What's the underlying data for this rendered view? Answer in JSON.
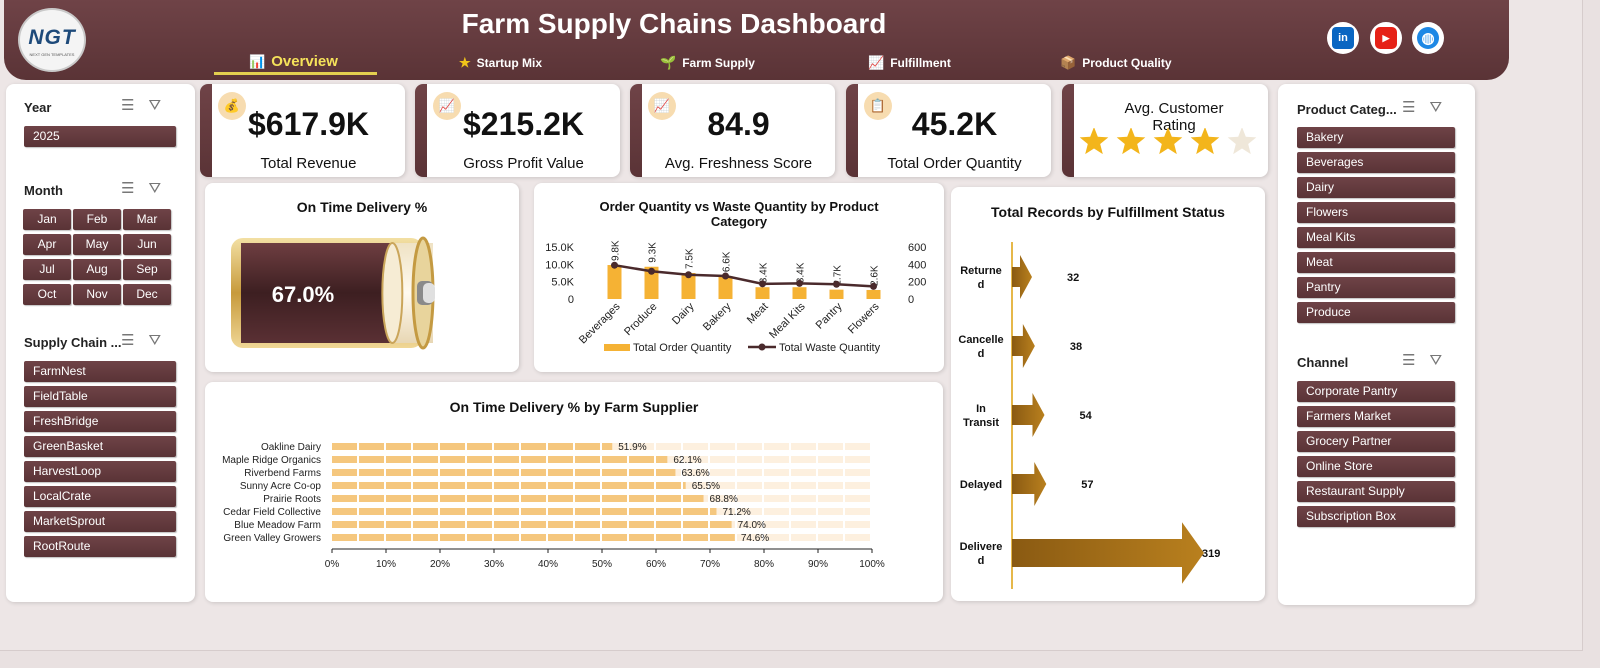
{
  "header": {
    "logo_text": "NGT",
    "logo_sub": "NEXT GEN TEMPLATES",
    "title": "Farm Supply Chains Dashboard",
    "tabs": [
      {
        "label": "Overview",
        "icon": "bar-chart-icon"
      },
      {
        "label": "Startup Mix",
        "icon": "star-icon"
      },
      {
        "label": "Farm Supply",
        "icon": "leaf-icon"
      },
      {
        "label": "Fulfillment",
        "icon": "line-chart-icon"
      },
      {
        "label": "Product Quality",
        "icon": "box-icon"
      }
    ],
    "social": [
      {
        "name": "linkedin-icon",
        "glyph": "in",
        "color": "#0a66c2"
      },
      {
        "name": "youtube-icon",
        "glyph": "▶",
        "color": "#e62117"
      },
      {
        "name": "globe-icon",
        "glyph": "◍",
        "color": "#1e88e5"
      }
    ]
  },
  "slicers": {
    "year": {
      "title": "Year",
      "items": [
        "2025"
      ]
    },
    "month": {
      "title": "Month",
      "items": [
        "Jan",
        "Feb",
        "Mar",
        "Apr",
        "May",
        "Jun",
        "Jul",
        "Aug",
        "Sep",
        "Oct",
        "Nov",
        "Dec"
      ]
    },
    "supply_chain": {
      "title": "Supply Chain ...",
      "items": [
        "FarmNest",
        "FieldTable",
        "FreshBridge",
        "GreenBasket",
        "HarvestLoop",
        "LocalCrate",
        "MarketSprout",
        "RootRoute"
      ]
    },
    "product_category": {
      "title": "Product Categ...",
      "items": [
        "Bakery",
        "Beverages",
        "Dairy",
        "Flowers",
        "Meal Kits",
        "Meat",
        "Pantry",
        "Produce"
      ]
    },
    "channel": {
      "title": "Channel",
      "items": [
        "Corporate Pantry",
        "Farmers Market",
        "Grocery Partner",
        "Online Store",
        "Restaurant Supply",
        "Subscription Box"
      ]
    }
  },
  "kpis": [
    {
      "value": "$617.9K",
      "label": "Total Revenue",
      "icon": "money-bag-icon"
    },
    {
      "value": "$215.2K",
      "label": "Gross Profit Value",
      "icon": "trend-icon"
    },
    {
      "value": "84.9",
      "label": "Avg. Freshness Score",
      "icon": "trend-icon"
    },
    {
      "value": "45.2K",
      "label": "Total Order Quantity",
      "icon": "clipboard-icon"
    }
  ],
  "rating": {
    "title": "Avg. Customer Rating",
    "value": "4.1",
    "stars": 4.1,
    "max": 5,
    "star_color": "#f3b51b"
  },
  "delivery": {
    "title": "On Time Delivery %",
    "value": "67.0%",
    "fraction": 0.67
  },
  "chart_data": [
    {
      "type": "bar",
      "title": "Order Quantity vs Waste Quantity by Product Category",
      "categories": [
        "Beverages",
        "Produce",
        "Dairy",
        "Bakery",
        "Meat",
        "Meal Kits",
        "Pantry",
        "Flowers"
      ],
      "series": [
        {
          "name": "Total Order Quantity",
          "type": "bar",
          "values": [
            9800,
            9300,
            7500,
            6600,
            3400,
            3400,
            2700,
            2600
          ],
          "labels": [
            "9.8K",
            "9.3K",
            "7.5K",
            "6.6K",
            "3.4K",
            "3.4K",
            "2.7K",
            "2.6K"
          ],
          "color": "#f5b234"
        },
        {
          "name": "Total Waste Quantity",
          "type": "line",
          "axis": "right",
          "values": [
            390,
            320,
            280,
            265,
            175,
            180,
            170,
            145
          ],
          "color": "#4a2a2c"
        }
      ],
      "y_ticks": [
        "15.0K",
        "10.0K",
        "5.0K",
        "0"
      ],
      "ylim": [
        0,
        15000
      ],
      "y2_ticks": [
        "600",
        "400",
        "200",
        "0"
      ],
      "y2lim": [
        0,
        600
      ],
      "legend": "bottom"
    },
    {
      "type": "bar",
      "orientation": "horizontal",
      "title": "On Time Delivery % by Farm Supplier",
      "categories": [
        "Oakline Dairy",
        "Maple Ridge Organics",
        "Riverbend Farms",
        "Sunny Acre Co-op",
        "Prairie Roots",
        "Cedar Field Collective",
        "Blue Meadow Farm",
        "Green Valley Growers"
      ],
      "values": [
        51.9,
        62.1,
        63.6,
        65.5,
        68.8,
        71.2,
        74.0,
        74.6
      ],
      "labels": [
        "51.9%",
        "62.1%",
        "63.6%",
        "65.5%",
        "68.8%",
        "71.2%",
        "74.0%",
        "74.6%"
      ],
      "x_ticks": [
        "0%",
        "10%",
        "20%",
        "30%",
        "40%",
        "50%",
        "60%",
        "70%",
        "80%",
        "90%",
        "100%"
      ],
      "xlim": [
        0,
        100
      ],
      "color": "#f5c77e"
    },
    {
      "type": "bar",
      "orientation": "horizontal",
      "title": "Total Records by Fulfillment Status",
      "categories": [
        "Returned",
        "Cancelled",
        "In Transit",
        "Delayed",
        "Delivered"
      ],
      "category_lines": [
        [
          "Returne",
          "d"
        ],
        [
          "Cancelle",
          "d"
        ],
        [
          "In",
          "Transit"
        ],
        [
          "Delayed"
        ],
        [
          "Delivere",
          "d"
        ]
      ],
      "values": [
        32,
        38,
        54,
        57,
        319
      ],
      "labels": [
        "32",
        "38",
        "54",
        "57",
        "319"
      ],
      "color": "#a8741a"
    }
  ]
}
